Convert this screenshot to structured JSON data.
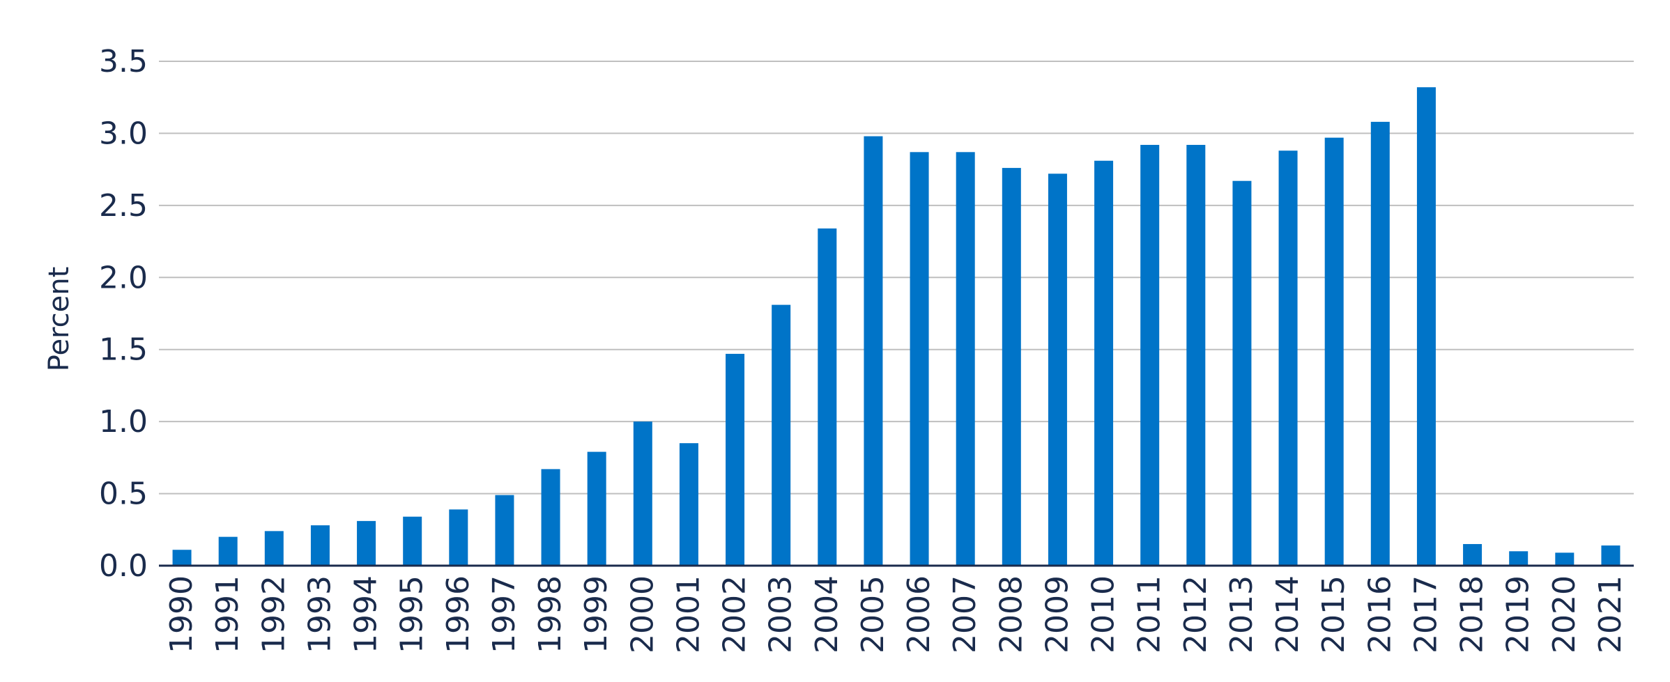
{
  "chart_data": {
    "type": "bar",
    "title": "",
    "xlabel": "",
    "ylabel": "Percent",
    "ylim": [
      0,
      3.5
    ],
    "yticks": [
      "0.0",
      "0.5",
      "1.0",
      "1.5",
      "2.0",
      "2.5",
      "3.0",
      "3.5"
    ],
    "grid": true,
    "legend": "none",
    "categories": [
      "1990",
      "1991",
      "1992",
      "1993",
      "1994",
      "1995",
      "1996",
      "1997",
      "1998",
      "1999",
      "2000",
      "2001",
      "2002",
      "2003",
      "2004",
      "2005",
      "2006",
      "2007",
      "2008",
      "2009",
      "2010",
      "2011",
      "2012",
      "2013",
      "2014",
      "2015",
      "2016",
      "2017",
      "2018",
      "2019",
      "2020",
      "2021"
    ],
    "values": [
      0.11,
      0.2,
      0.24,
      0.28,
      0.31,
      0.34,
      0.39,
      0.49,
      0.67,
      0.79,
      1.0,
      0.85,
      1.47,
      1.81,
      2.34,
      2.98,
      2.87,
      2.87,
      2.76,
      2.72,
      2.81,
      2.92,
      2.92,
      2.67,
      2.88,
      2.97,
      3.08,
      3.32,
      0.15,
      0.1,
      0.09,
      0.14
    ],
    "colors": {
      "bar": "#0074c8",
      "grid": "#bfbfbf",
      "axis": "#1a2b4c",
      "text": "#1a2b4c"
    }
  }
}
